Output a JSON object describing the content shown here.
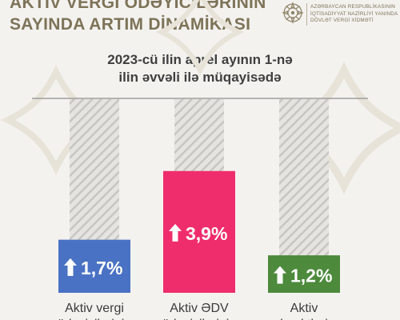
{
  "header": {
    "title_lines": [
      "AKTİV VERGİ ÖDƏYİCİLƏRİNİN",
      "SAYINDA ARTIM DİNAMİKASI"
    ]
  },
  "organization": {
    "lines": [
      "AZƏRBAYCAN RESPUBLİKASININ",
      "İQTİSADİYYAT NAZİRLİYİ YANINDA",
      "DÖVLƏT VERGİ XİDMƏTİ"
    ],
    "emblem": "emblem-icon"
  },
  "chart_data": {
    "type": "bar",
    "title_lines": [
      "2023-cü ilin aprel ayının 1-nə",
      "ilin əvvəli ilə müqayisədə"
    ],
    "categories": [
      [
        "Aktiv vergi",
        "ödəyicilərinin"
      ],
      [
        "Aktiv ƏDV",
        "ödəyicilərinin"
      ],
      [
        "Aktiv",
        "obyektlərin"
      ]
    ],
    "values": [
      1.7,
      3.9,
      1.2
    ],
    "value_labels": [
      "1,7%",
      "3,9%",
      "1,2%"
    ],
    "unit": "%",
    "colors": [
      "#4a72c4",
      "#ef2d6c",
      "#4d8a3c"
    ],
    "arrow_icon": "arrow-up-icon",
    "ylim": [
      0,
      6.2
    ],
    "grid": false,
    "legend": "none"
  }
}
